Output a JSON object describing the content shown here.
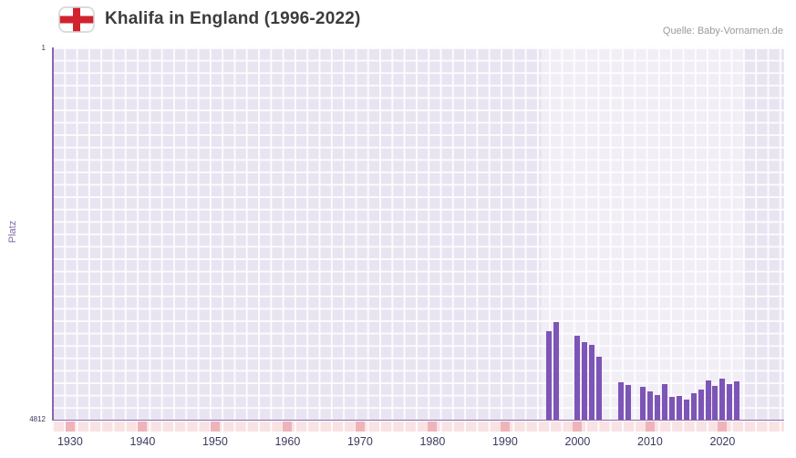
{
  "header": {
    "title": "Khalifa in England (1996-2022)",
    "source": "Quelle: Baby-Vornamen.de",
    "flag_icon": "england-flag-icon"
  },
  "colors": {
    "bar": "#7d55b6",
    "grid_cell": "#e8e4f1",
    "axis": "#8a66ae",
    "strip_background": "#f9e2e4",
    "strip_mark": "#eeb4ba",
    "tick_text": "#3a3a60",
    "ylabel_text": "#7d6ba6"
  },
  "chart_data": {
    "type": "bar",
    "title": "Khalifa in England (1996-2022)",
    "xlabel": "",
    "ylabel": "Platz",
    "y_axis_inverted": true,
    "ylim_top": 1,
    "ylim_bottom": 4812,
    "y_axis_labels": {
      "top": "1",
      "bottom": "4812"
    },
    "x_range": [
      1927.5,
      2028.5
    ],
    "x_ticks": [
      1930,
      1940,
      1950,
      1960,
      1970,
      1980,
      1990,
      2000,
      2010,
      2020
    ],
    "highlight_range": [
      1995,
      2023
    ],
    "grid": true,
    "legend": "none",
    "series": [
      {
        "name": "Platz",
        "points": [
          {
            "year": 1996,
            "value": 3670
          },
          {
            "year": 1997,
            "value": 3545
          },
          {
            "year": 1998,
            "value": null
          },
          {
            "year": 1999,
            "value": null
          },
          {
            "year": 2000,
            "value": 3730
          },
          {
            "year": 2001,
            "value": 3810
          },
          {
            "year": 2002,
            "value": 3850
          },
          {
            "year": 2003,
            "value": 4000
          },
          {
            "year": 2004,
            "value": null
          },
          {
            "year": 2005,
            "value": null
          },
          {
            "year": 2006,
            "value": 4330
          },
          {
            "year": 2007,
            "value": 4360
          },
          {
            "year": 2008,
            "value": null
          },
          {
            "year": 2009,
            "value": 4390
          },
          {
            "year": 2010,
            "value": 4440
          },
          {
            "year": 2011,
            "value": 4490
          },
          {
            "year": 2012,
            "value": 4350
          },
          {
            "year": 2013,
            "value": 4520
          },
          {
            "year": 2014,
            "value": 4500
          },
          {
            "year": 2015,
            "value": 4550
          },
          {
            "year": 2016,
            "value": 4470
          },
          {
            "year": 2017,
            "value": 4420
          },
          {
            "year": 2018,
            "value": 4310
          },
          {
            "year": 2019,
            "value": 4380
          },
          {
            "year": 2020,
            "value": 4280
          },
          {
            "year": 2021,
            "value": 4350
          },
          {
            "year": 2022,
            "value": 4320
          }
        ]
      }
    ]
  }
}
